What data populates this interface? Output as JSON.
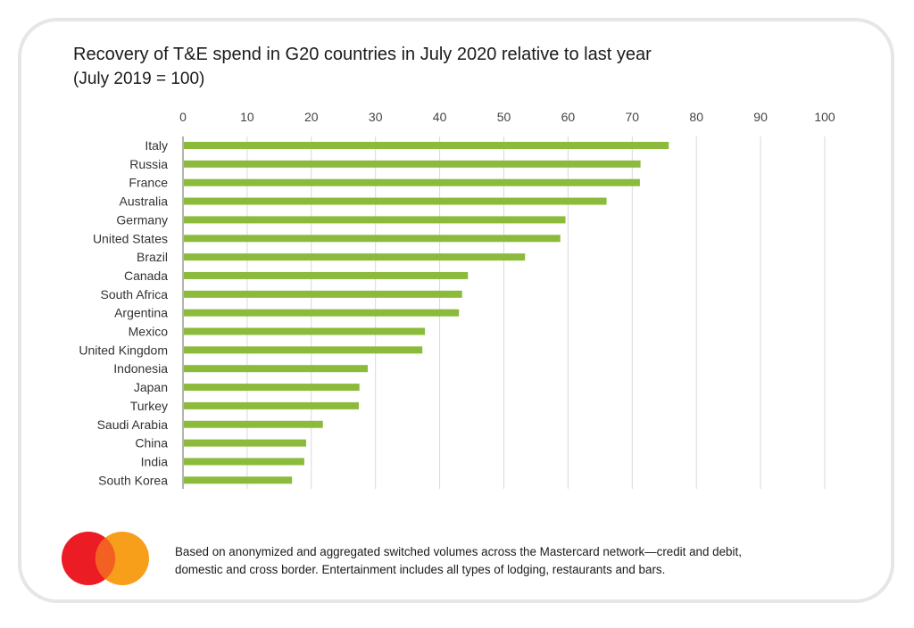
{
  "chart_data": {
    "type": "bar",
    "orientation": "horizontal",
    "title": "Recovery of T&E spend in G20 countries in July 2020 relative to last year",
    "subtitle": "(July 2019 = 100)",
    "xlabel": "",
    "ylabel": "",
    "xlim": [
      0,
      100
    ],
    "xticks": [
      0,
      10,
      20,
      30,
      40,
      50,
      60,
      70,
      80,
      90,
      100
    ],
    "xtick_labels": [
      "0",
      "10",
      "20",
      "30",
      "40",
      "50",
      "60",
      "70",
      "80",
      "90",
      "100"
    ],
    "grid": true,
    "legend": "none",
    "bar_color": "#8cbb3c",
    "categories": [
      "Italy",
      "Russia",
      "France",
      "Australia",
      "Germany",
      "United States",
      "Brazil",
      "Canada",
      "South Africa",
      "Argentina",
      "Mexico",
      "United Kingdom",
      "Indonesia",
      "Japan",
      "Turkey",
      "Saudi Arabia",
      "China",
      "India",
      "South Korea"
    ],
    "values": [
      75.7,
      71.3,
      71.2,
      66.0,
      59.6,
      58.8,
      53.3,
      44.4,
      43.5,
      43.0,
      37.7,
      37.3,
      28.8,
      27.5,
      27.4,
      21.8,
      19.2,
      18.9,
      17.0
    ]
  },
  "footer": {
    "logo": "mastercard-logo",
    "logo_colors": {
      "red": "#eb001b",
      "orange": "#f79e1b",
      "overlap": "#ff5f00"
    },
    "note_lines": [
      "Based on anonymized and aggregated switched volumes across the Mastercard network—credit and debit,",
      "domestic and cross border. Entertainment includes all types of lodging, restaurants and bars."
    ]
  }
}
